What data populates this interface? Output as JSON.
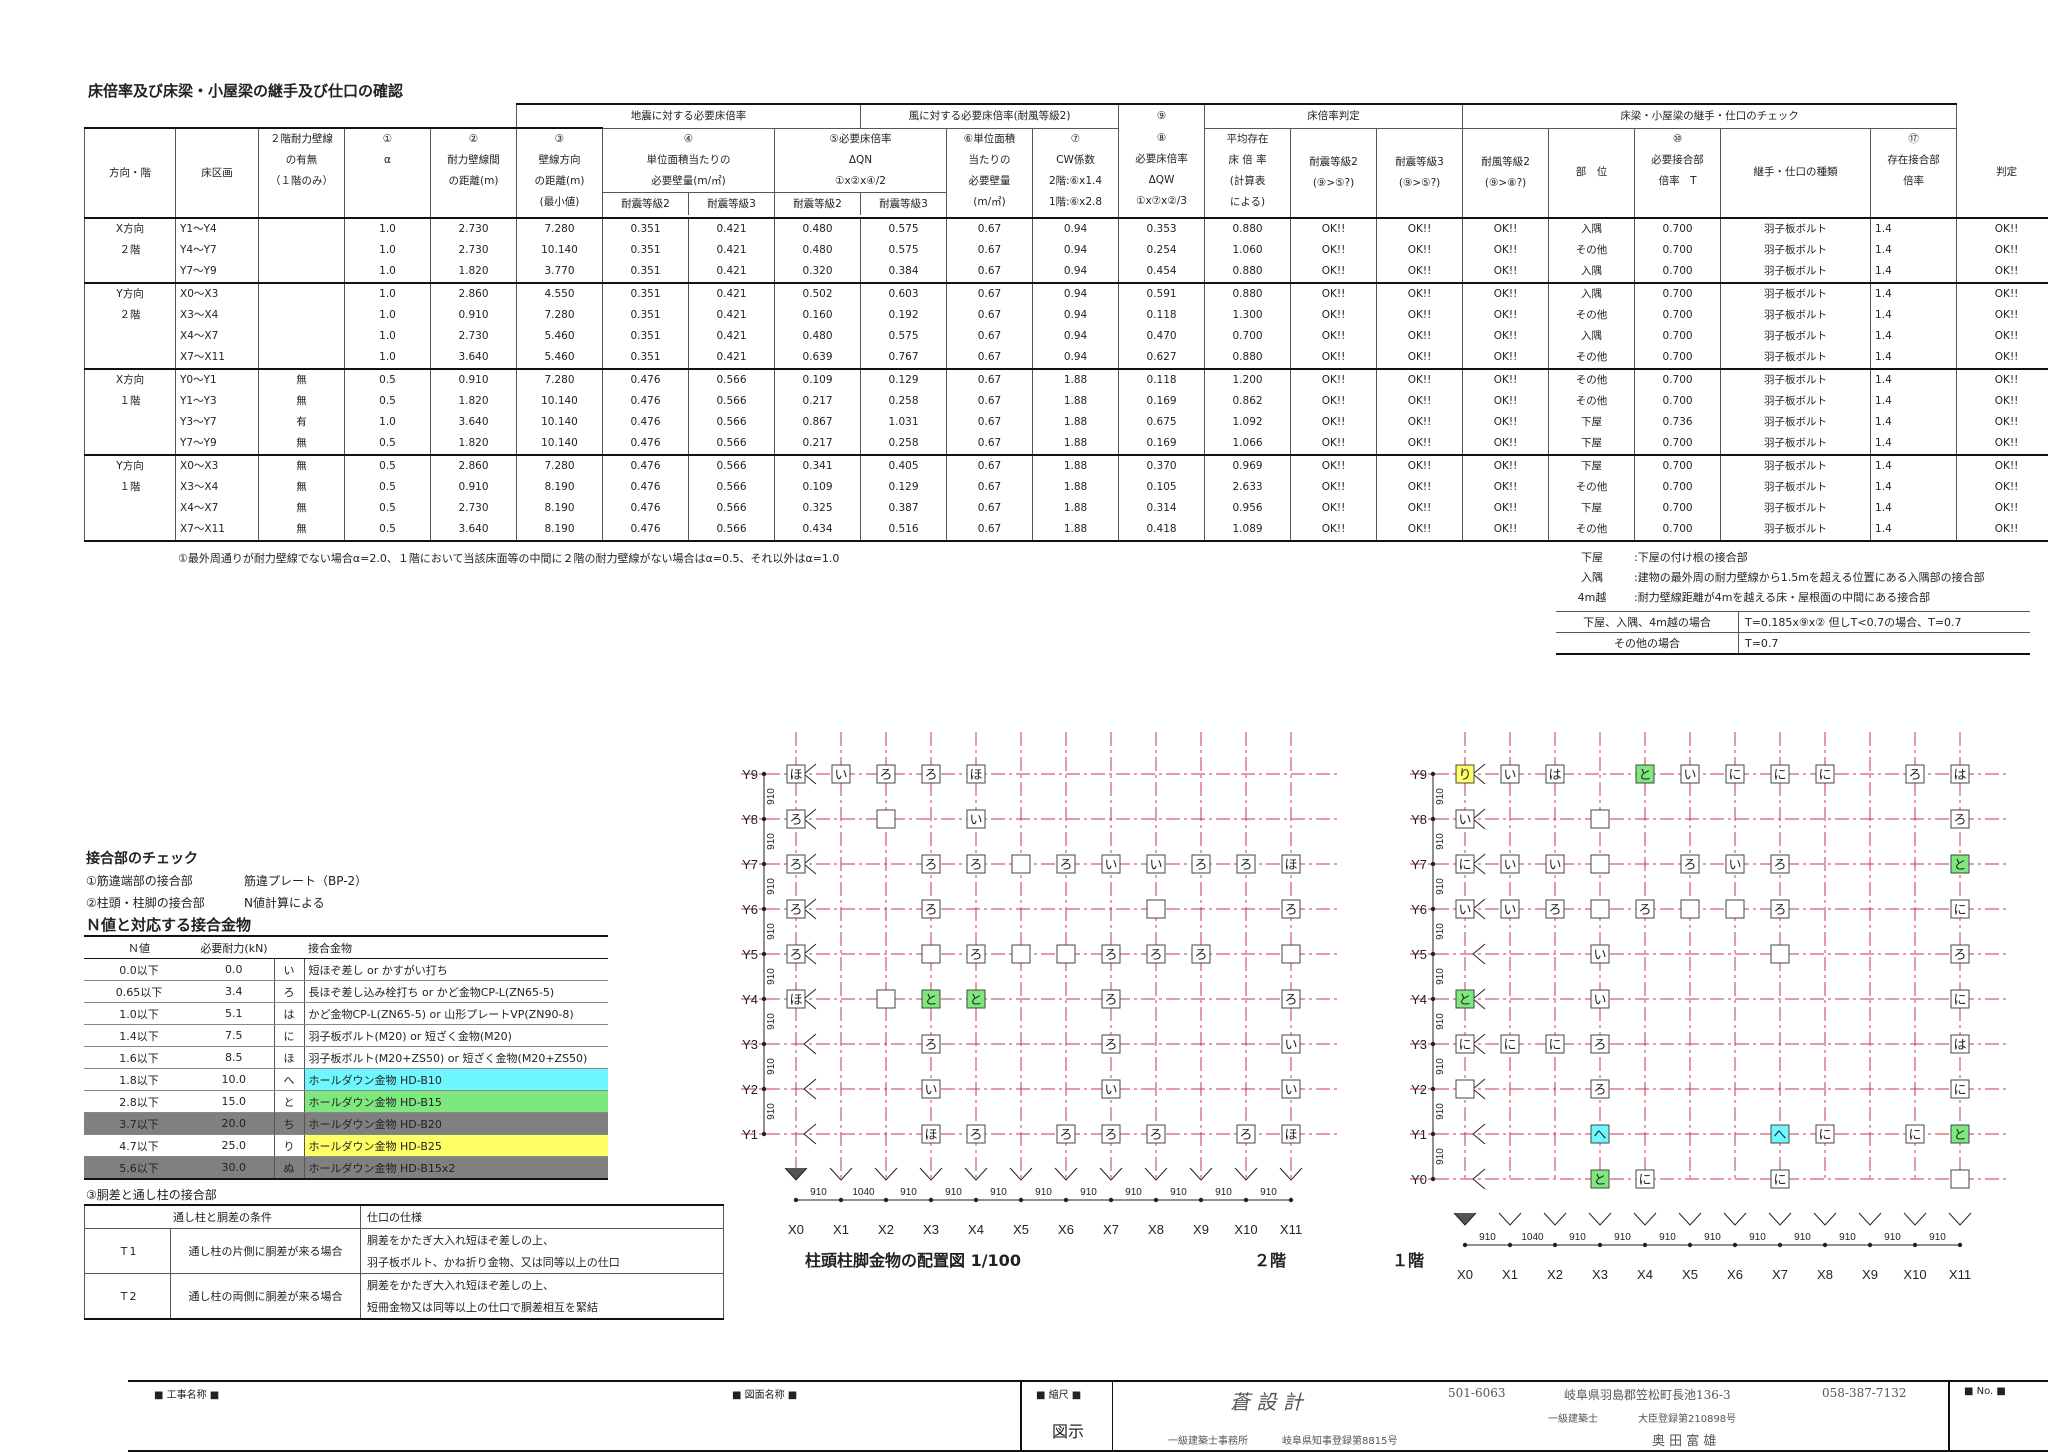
{
  "title": "床倍率及び床梁・小屋梁の継手及び仕口の確認",
  "main_table": {
    "header_groups": {
      "earthquake": "地震に対する必要床倍率",
      "wind": "風に対する必要床倍率(耐風等級2)",
      "col9": "⑨",
      "judge": "床倍率判定",
      "beam": "床梁・小屋梁の継手・仕口のチェック"
    },
    "headers": {
      "dir": "方向・階",
      "area": "床区画",
      "h2a": "２階耐力壁線",
      "h2b": "の有無",
      "h2c": "（１階のみ）",
      "c1a": "①",
      "c1b": "α",
      "c2a": "②",
      "c2b": "耐力壁線間",
      "c2c": "の距離(m)",
      "c3a": "③",
      "c3b": "壁線方向",
      "c3c": "の距離(m)",
      "c3d": "(最小値)",
      "c4a": "④",
      "c4b": "単位面積当たりの",
      "c4c": "必要壁量(m/㎡)",
      "c5a": "⑤必要床倍率",
      "c5b": "ΔQN",
      "c5c": "①x②x④/2",
      "c6a": "⑥単位面積",
      "c6b": "当たりの",
      "c6c": "必要壁量",
      "c6d": "(m/㎡)",
      "c7a": "⑦",
      "c7b": "CW係数",
      "c7c": "2階:⑥x1.4",
      "c7d": "1階:⑥x2.8",
      "c8a": "⑧",
      "c8b": "必要床倍率",
      "c8c": "ΔQW",
      "c8d": "①x⑦x②/3",
      "c9a": "平均存在",
      "c9b": "床 倍 率",
      "c9c": "(計算表",
      "c9d": "による)",
      "j1a": "耐震等級2",
      "j1b": "(⑨>⑤?)",
      "j2a": "耐震等級3",
      "j2b": "(⑨>⑤?)",
      "j3a": "耐風等級2",
      "j3b": "(⑨>⑧?)",
      "bpos": "部　位",
      "b10a": "⑩",
      "b10b": "必要接合部",
      "b10c": "倍率　T",
      "btype": "継手・仕口の種類",
      "b17a": "⑰",
      "b17b": "存在接合部",
      "b17c": "倍率",
      "bj": "判定",
      "e2": "耐震等級2",
      "e3": "耐震等級3"
    },
    "groups": [
      {
        "dir": "X方向",
        "floor": "２階",
        "rows": [
          [
            "Y1～Y4",
            "",
            "1.0",
            "2.730",
            "7.280",
            "0.351",
            "0.421",
            "0.480",
            "0.575",
            "0.67",
            "0.94",
            "0.353",
            "0.880",
            "OK!!",
            "OK!!",
            "OK!!",
            "入隅",
            "0.700",
            "羽子板ボルト",
            "1.4",
            "OK!!"
          ],
          [
            "Y4～Y7",
            "",
            "1.0",
            "2.730",
            "10.140",
            "0.351",
            "0.421",
            "0.480",
            "0.575",
            "0.67",
            "0.94",
            "0.254",
            "1.060",
            "OK!!",
            "OK!!",
            "OK!!",
            "その他",
            "0.700",
            "羽子板ボルト",
            "1.4",
            "OK!!"
          ],
          [
            "Y7～Y9",
            "",
            "1.0",
            "1.820",
            "3.770",
            "0.351",
            "0.421",
            "0.320",
            "0.384",
            "0.67",
            "0.94",
            "0.454",
            "0.880",
            "OK!!",
            "OK!!",
            "OK!!",
            "入隅",
            "0.700",
            "羽子板ボルト",
            "1.4",
            "OK!!"
          ]
        ]
      },
      {
        "dir": "Y方向",
        "floor": "２階",
        "rows": [
          [
            "X0～X3",
            "",
            "1.0",
            "2.860",
            "4.550",
            "0.351",
            "0.421",
            "0.502",
            "0.603",
            "0.67",
            "0.94",
            "0.591",
            "0.880",
            "OK!!",
            "OK!!",
            "OK!!",
            "入隅",
            "0.700",
            "羽子板ボルト",
            "1.4",
            "OK!!"
          ],
          [
            "X3～X4",
            "",
            "1.0",
            "0.910",
            "7.280",
            "0.351",
            "0.421",
            "0.160",
            "0.192",
            "0.67",
            "0.94",
            "0.118",
            "1.300",
            "OK!!",
            "OK!!",
            "OK!!",
            "その他",
            "0.700",
            "羽子板ボルト",
            "1.4",
            "OK!!"
          ],
          [
            "X4～X7",
            "",
            "1.0",
            "2.730",
            "5.460",
            "0.351",
            "0.421",
            "0.480",
            "0.575",
            "0.67",
            "0.94",
            "0.470",
            "0.700",
            "OK!!",
            "OK!!",
            "OK!!",
            "入隅",
            "0.700",
            "羽子板ボルト",
            "1.4",
            "OK!!"
          ],
          [
            "X7～X11",
            "",
            "1.0",
            "3.640",
            "5.460",
            "0.351",
            "0.421",
            "0.639",
            "0.767",
            "0.67",
            "0.94",
            "0.627",
            "0.880",
            "OK!!",
            "OK!!",
            "OK!!",
            "その他",
            "0.700",
            "羽子板ボルト",
            "1.4",
            "OK!!"
          ]
        ]
      },
      {
        "dir": "X方向",
        "floor": "１階",
        "rows": [
          [
            "Y0～Y1",
            "無",
            "0.5",
            "0.910",
            "7.280",
            "0.476",
            "0.566",
            "0.109",
            "0.129",
            "0.67",
            "1.88",
            "0.118",
            "1.200",
            "OK!!",
            "OK!!",
            "OK!!",
            "その他",
            "0.700",
            "羽子板ボルト",
            "1.4",
            "OK!!"
          ],
          [
            "Y1～Y3",
            "無",
            "0.5",
            "1.820",
            "10.140",
            "0.476",
            "0.566",
            "0.217",
            "0.258",
            "0.67",
            "1.88",
            "0.169",
            "0.862",
            "OK!!",
            "OK!!",
            "OK!!",
            "その他",
            "0.700",
            "羽子板ボルト",
            "1.4",
            "OK!!"
          ],
          [
            "Y3～Y7",
            "有",
            "1.0",
            "3.640",
            "10.140",
            "0.476",
            "0.566",
            "0.867",
            "1.031",
            "0.67",
            "1.88",
            "0.675",
            "1.092",
            "OK!!",
            "OK!!",
            "OK!!",
            "下屋",
            "0.736",
            "羽子板ボルト",
            "1.4",
            "OK!!"
          ],
          [
            "Y7～Y9",
            "無",
            "0.5",
            "1.820",
            "10.140",
            "0.476",
            "0.566",
            "0.217",
            "0.258",
            "0.67",
            "1.88",
            "0.169",
            "1.066",
            "OK!!",
            "OK!!",
            "OK!!",
            "下屋",
            "0.700",
            "羽子板ボルト",
            "1.4",
            "OK!!"
          ]
        ]
      },
      {
        "dir": "Y方向",
        "floor": "１階",
        "rows": [
          [
            "X0～X3",
            "無",
            "0.5",
            "2.860",
            "7.280",
            "0.476",
            "0.566",
            "0.341",
            "0.405",
            "0.67",
            "1.88",
            "0.370",
            "0.969",
            "OK!!",
            "OK!!",
            "OK!!",
            "下屋",
            "0.700",
            "羽子板ボルト",
            "1.4",
            "OK!!"
          ],
          [
            "X3～X4",
            "無",
            "0.5",
            "0.910",
            "8.190",
            "0.476",
            "0.566",
            "0.109",
            "0.129",
            "0.67",
            "1.88",
            "0.105",
            "2.633",
            "OK!!",
            "OK!!",
            "OK!!",
            "その他",
            "0.700",
            "羽子板ボルト",
            "1.4",
            "OK!!"
          ],
          [
            "X4～X7",
            "無",
            "0.5",
            "2.730",
            "8.190",
            "0.476",
            "0.566",
            "0.325",
            "0.387",
            "0.67",
            "1.88",
            "0.314",
            "0.956",
            "OK!!",
            "OK!!",
            "OK!!",
            "下屋",
            "0.700",
            "羽子板ボルト",
            "1.4",
            "OK!!"
          ],
          [
            "X7～X11",
            "無",
            "0.5",
            "3.640",
            "8.190",
            "0.476",
            "0.566",
            "0.434",
            "0.516",
            "0.67",
            "1.88",
            "0.418",
            "1.089",
            "OK!!",
            "OK!!",
            "OK!!",
            "その他",
            "0.700",
            "羽子板ボルト",
            "1.4",
            "OK!!"
          ]
        ]
      }
    ]
  },
  "footnote": "①最外周通りが耐力壁線でない場合α=2.0、１階において当該床面等の中間に２階の耐力壁線がない場合はα=0.5、それ以外はα=1.0",
  "legend": [
    {
      "k": "下屋",
      "v": ":下屋の付け根の接合部"
    },
    {
      "k": "入隅",
      "v": ":建物の最外周の耐力壁線から1.5mを超える位置にある入隅部の接合部"
    },
    {
      "k": "4m越",
      "v": ":耐力壁線距離が4mを越える床・屋根面の中間にある接合部"
    }
  ],
  "formula": [
    {
      "k": "下屋、入隅、4m越の場合",
      "v": "T=0.185x⑨x② 但しT<0.7の場合、T=0.7"
    },
    {
      "k": "その他の場合",
      "v": "T=0.7"
    }
  ],
  "joint_check": {
    "title": "接合部のチェック",
    "l1a": "①筋違端部の接合部",
    "l1b": "筋違プレート（BP-2）",
    "l2a": "②柱頭・柱脚の接合部",
    "l2b": "N値計算による",
    "n_title": "Ｎ値と対応する接合金物",
    "n_headers": [
      "Ｎ値",
      "必要耐力(kN)",
      "",
      "接合金物"
    ],
    "n_rows": [
      {
        "n": "0.0以下",
        "kn": "0.0",
        "sym": "い",
        "hw": "短ほぞ差し or かすがい打ち",
        "color": ""
      },
      {
        "n": "0.65以下",
        "kn": "3.4",
        "sym": "ろ",
        "hw": "長ほぞ差し込み栓打ち or かど金物CP-L(ZN65-5)",
        "color": ""
      },
      {
        "n": "1.0以下",
        "kn": "5.1",
        "sym": "は",
        "hw": "かど金物CP-L(ZN65-5) or 山形プレートVP(ZN90-8)",
        "color": ""
      },
      {
        "n": "1.4以下",
        "kn": "7.5",
        "sym": "に",
        "hw": "羽子板ボルト(M20) or 短ざく金物(M20)",
        "color": ""
      },
      {
        "n": "1.6以下",
        "kn": "8.5",
        "sym": "ほ",
        "hw": "羽子板ボルト(M20+ZS50) or 短ざく金物(M20+ZS50)",
        "color": ""
      },
      {
        "n": "1.8以下",
        "kn": "10.0",
        "sym": "へ",
        "hw": "ホールダウン金物 HD-B10",
        "color": "#6ff7ff"
      },
      {
        "n": "2.8以下",
        "kn": "15.0",
        "sym": "と",
        "hw": "ホールダウン金物 HD-B15",
        "color": "#7ee87e"
      },
      {
        "n": "3.7以下",
        "kn": "20.0",
        "sym": "ち",
        "hw": "ホールダウン金物 HD-B20",
        "color": "#808080"
      },
      {
        "n": "4.7以下",
        "kn": "25.0",
        "sym": "り",
        "hw": "ホールダウン金物 HD-B25",
        "color": "#ffff66"
      },
      {
        "n": "5.6以下",
        "kn": "30.0",
        "sym": "ぬ",
        "hw": "ホールダウン金物 HD-B15x2",
        "color": "#808080"
      }
    ],
    "t_title": "③胴差と通し柱の接合部",
    "t_headers": [
      "通し柱と胴差の条件",
      "仕口の仕様"
    ],
    "t_rows": [
      {
        "id": "Ｔ1",
        "cond": "通し柱の片側に胴差が来る場合",
        "spec1": "胴差をかたぎ大入れ短ほぞ差しの上、",
        "spec2": "羽子板ボルト、かね折り金物、又は同等以上の仕口"
      },
      {
        "id": "Ｔ2",
        "cond": "通し柱の両側に胴差が来る場合",
        "spec1": "胴差をかたぎ大入れ短ほぞ差しの上、",
        "spec2": "短冊金物又は同等以上の仕口で胴差相互を緊結"
      }
    ]
  },
  "plans": {
    "caption": "柱頭柱脚金物の配置図 1/100",
    "floor2_label": "２階",
    "floor1_label": "１階",
    "x_labels": [
      "X0",
      "X1",
      "X2",
      "X3",
      "X4",
      "X5",
      "X6",
      "X7",
      "X8",
      "X9",
      "X10",
      "X11"
    ],
    "x_dims": [
      "910",
      "1040",
      "910",
      "910",
      "910",
      "910",
      "910",
      "910",
      "910",
      "910",
      "910"
    ],
    "y_labels_2f": [
      "Y9",
      "Y8",
      "Y7",
      "Y6",
      "Y5",
      "Y4",
      "Y3",
      "Y2",
      "Y1"
    ],
    "y_labels_1f": [
      "Y9",
      "Y8",
      "Y7",
      "Y6",
      "Y5",
      "Y4",
      "Y3",
      "Y2",
      "Y1",
      "Y0"
    ],
    "y_dim": "910",
    "floor2_marks": [
      [
        "Y9",
        "X0",
        "ほ",
        ""
      ],
      [
        "Y9",
        "X1",
        "い",
        ""
      ],
      [
        "Y9",
        "X2",
        "ろ",
        ""
      ],
      [
        "Y9",
        "X3",
        "ろ",
        ""
      ],
      [
        "Y9",
        "X4",
        "ほ",
        ""
      ],
      [
        "Y8",
        "X0",
        "ろ",
        ""
      ],
      [
        "Y8",
        "X2",
        "",
        ""
      ],
      [
        "Y8",
        "X4",
        "い",
        ""
      ],
      [
        "Y7",
        "X0",
        "ろ",
        ""
      ],
      [
        "Y7",
        "X3",
        "ろ",
        ""
      ],
      [
        "Y7",
        "X4",
        "ろ",
        ""
      ],
      [
        "Y7",
        "X5",
        "",
        ""
      ],
      [
        "Y7",
        "X6",
        "ろ",
        ""
      ],
      [
        "Y7",
        "X7",
        "い",
        ""
      ],
      [
        "Y7",
        "X8",
        "い",
        ""
      ],
      [
        "Y7",
        "X9",
        "ろ",
        ""
      ],
      [
        "Y7",
        "X10",
        "ろ",
        ""
      ],
      [
        "Y7",
        "X11",
        "ほ",
        ""
      ],
      [
        "Y6",
        "X0",
        "ろ",
        ""
      ],
      [
        "Y6",
        "X3",
        "ろ",
        ""
      ],
      [
        "Y6",
        "X8",
        "",
        ""
      ],
      [
        "Y6",
        "X11",
        "ろ",
        ""
      ],
      [
        "Y5",
        "X0",
        "ろ",
        ""
      ],
      [
        "Y5",
        "X3",
        "",
        ""
      ],
      [
        "Y5",
        "X4",
        "ろ",
        ""
      ],
      [
        "Y5",
        "X5",
        "",
        ""
      ],
      [
        "Y5",
        "X6",
        "",
        ""
      ],
      [
        "Y5",
        "X7",
        "ろ",
        ""
      ],
      [
        "Y5",
        "X8",
        "ろ",
        ""
      ],
      [
        "Y5",
        "X9",
        "ろ",
        ""
      ],
      [
        "Y5",
        "X11",
        "",
        ""
      ],
      [
        "Y4",
        "X0",
        "ほ",
        ""
      ],
      [
        "Y4",
        "X2",
        "",
        ""
      ],
      [
        "Y4",
        "X3",
        "と",
        "#7ee87e"
      ],
      [
        "Y4",
        "X4",
        "と",
        "#7ee87e"
      ],
      [
        "Y4",
        "X7",
        "ろ",
        ""
      ],
      [
        "Y4",
        "X11",
        "ろ",
        ""
      ],
      [
        "Y3",
        "X3",
        "ろ",
        ""
      ],
      [
        "Y3",
        "X7",
        "ろ",
        ""
      ],
      [
        "Y3",
        "X11",
        "い",
        ""
      ],
      [
        "Y2",
        "X3",
        "い",
        ""
      ],
      [
        "Y2",
        "X7",
        "い",
        ""
      ],
      [
        "Y2",
        "X11",
        "い",
        ""
      ],
      [
        "Y1",
        "X3",
        "ほ",
        ""
      ],
      [
        "Y1",
        "X4",
        "ろ",
        ""
      ],
      [
        "Y1",
        "X6",
        "ろ",
        ""
      ],
      [
        "Y1",
        "X7",
        "ろ",
        ""
      ],
      [
        "Y1",
        "X8",
        "ろ",
        ""
      ],
      [
        "Y1",
        "X10",
        "ろ",
        ""
      ],
      [
        "Y1",
        "X11",
        "ほ",
        ""
      ]
    ],
    "floor1_marks": [
      [
        "Y9",
        "X0",
        "り",
        "#ffff66"
      ],
      [
        "Y9",
        "X1",
        "い",
        ""
      ],
      [
        "Y9",
        "X2",
        "は",
        ""
      ],
      [
        "Y9",
        "X4",
        "と",
        "#7ee87e"
      ],
      [
        "Y9",
        "X5",
        "い",
        ""
      ],
      [
        "Y9",
        "X6",
        "に",
        ""
      ],
      [
        "Y9",
        "X7",
        "に",
        ""
      ],
      [
        "Y9",
        "X8",
        "に",
        ""
      ],
      [
        "Y9",
        "X10",
        "ろ",
        ""
      ],
      [
        "Y9",
        "X11",
        "は",
        ""
      ],
      [
        "Y8",
        "X0",
        "い",
        ""
      ],
      [
        "Y8",
        "X3",
        "",
        ""
      ],
      [
        "Y8",
        "X11",
        "ろ",
        ""
      ],
      [
        "Y7",
        "X0",
        "に",
        ""
      ],
      [
        "Y7",
        "X1",
        "い",
        ""
      ],
      [
        "Y7",
        "X2",
        "い",
        ""
      ],
      [
        "Y7",
        "X3",
        "",
        ""
      ],
      [
        "Y7",
        "X5",
        "ろ",
        ""
      ],
      [
        "Y7",
        "X6",
        "い",
        ""
      ],
      [
        "Y7",
        "X7",
        "ろ",
        ""
      ],
      [
        "Y7",
        "X11",
        "と",
        "#7ee87e"
      ],
      [
        "Y6",
        "X0",
        "い",
        ""
      ],
      [
        "Y6",
        "X1",
        "い",
        ""
      ],
      [
        "Y6",
        "X2",
        "ろ",
        ""
      ],
      [
        "Y6",
        "X3",
        "",
        ""
      ],
      [
        "Y6",
        "X4",
        "ろ",
        ""
      ],
      [
        "Y6",
        "X5",
        "",
        ""
      ],
      [
        "Y6",
        "X6",
        "",
        ""
      ],
      [
        "Y6",
        "X7",
        "ろ",
        ""
      ],
      [
        "Y6",
        "X11",
        "に",
        ""
      ],
      [
        "Y5",
        "X3",
        "い",
        ""
      ],
      [
        "Y5",
        "X7",
        "",
        ""
      ],
      [
        "Y5",
        "X11",
        "ろ",
        ""
      ],
      [
        "Y4",
        "X0",
        "と",
        "#7ee87e"
      ],
      [
        "Y4",
        "X3",
        "い",
        ""
      ],
      [
        "Y4",
        "X11",
        "に",
        ""
      ],
      [
        "Y3",
        "X0",
        "に",
        ""
      ],
      [
        "Y3",
        "X1",
        "に",
        ""
      ],
      [
        "Y3",
        "X2",
        "に",
        ""
      ],
      [
        "Y3",
        "X3",
        "ろ",
        ""
      ],
      [
        "Y3",
        "X11",
        "は",
        ""
      ],
      [
        "Y2",
        "X0",
        "",
        ""
      ],
      [
        "Y2",
        "X3",
        "ろ",
        ""
      ],
      [
        "Y2",
        "X11",
        "に",
        ""
      ],
      [
        "Y1",
        "X3",
        "へ",
        "#6ff7ff"
      ],
      [
        "Y1",
        "X7",
        "へ",
        "#6ff7ff"
      ],
      [
        "Y1",
        "X8",
        "に",
        ""
      ],
      [
        "Y1",
        "X10",
        "に",
        ""
      ],
      [
        "Y1",
        "X11",
        "と",
        "#7ee87e"
      ],
      [
        "Y0",
        "X3",
        "と",
        "#7ee87e"
      ],
      [
        "Y0",
        "X4",
        "に",
        ""
      ],
      [
        "Y0",
        "X7",
        "に",
        ""
      ],
      [
        "Y0",
        "X11",
        "",
        ""
      ]
    ]
  },
  "title_block": {
    "project_label": "■ 工事名称 ■",
    "drawing_label": "■ 図面名称 ■",
    "scale_label": "■ 縮尺 ■",
    "scale_value": "図示",
    "office": "蒼 設 計",
    "office_type": "一級建築士事務所",
    "registration": "岐阜県知事登録第8815号",
    "zip": "501-6063",
    "address": "岐阜県羽島郡笠松町長池136-3",
    "phone": "058-387-7132",
    "architect_label": "一級建築士",
    "architect_reg": "大臣登録第210898号",
    "architect": "奥 田 富 雄",
    "no_label": "■ No. ■"
  }
}
